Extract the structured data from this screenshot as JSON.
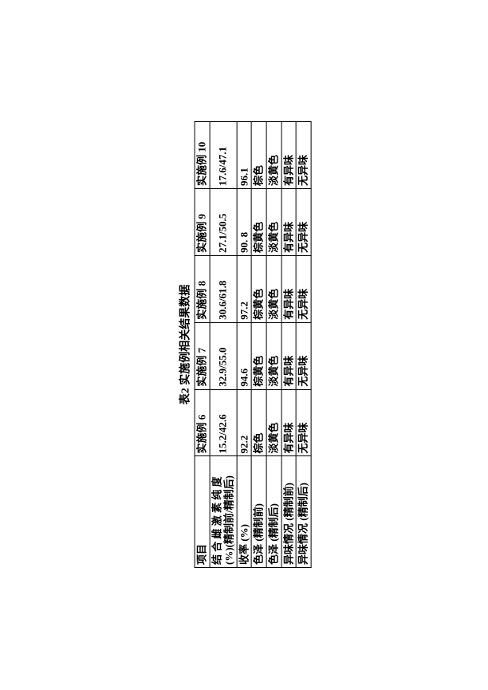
{
  "table": {
    "title": "表2 实施例相关结果数据",
    "columns": [
      "项目",
      "实施例 6",
      "实施例 7",
      "实施例 8",
      "实施例 9",
      "实施例 10"
    ],
    "rows": [
      {
        "label": "结 合 雌 激 素 纯 度 (%)(精制前/精制后)",
        "values": [
          "15.2/42.6",
          "32.9/55.0",
          "30.6/61.8",
          "27.1/50.5",
          "17.6/47.1"
        ]
      },
      {
        "label": "收率 (%)",
        "values": [
          "92.2",
          "94.6",
          "97.2",
          "90. 8",
          "96.1"
        ]
      },
      {
        "label": "色泽 (精制前)",
        "values": [
          "棕色",
          "棕黄色",
          "棕黄色",
          "棕黄色",
          "棕色"
        ]
      },
      {
        "label": "色泽 (精制后)",
        "values": [
          "淡黄色",
          "淡黄色",
          "淡黄色",
          "淡黄色",
          "淡黄色"
        ]
      },
      {
        "label": "异味情况 (精制前)",
        "values": [
          "有异味",
          "有异味",
          "有异味",
          "有异味",
          "有异味"
        ]
      },
      {
        "label": "异味情况 (精制后)",
        "values": [
          "无异味",
          "无异味",
          "无异味",
          "无异味",
          "无异味"
        ]
      }
    ]
  }
}
